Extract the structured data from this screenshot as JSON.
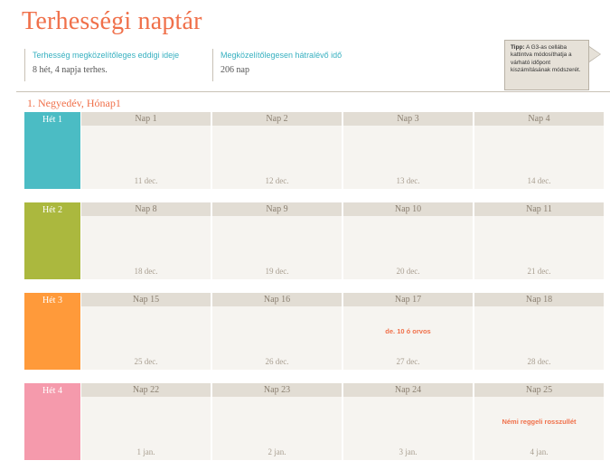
{
  "title": "Terhességi naptár",
  "info": {
    "elapsed_label": "Terhesség megközelítőleges eddigi ideje",
    "elapsed_value": "8 hét, 4 napja terhes.",
    "remaining_label": "Megközelítőlegesen hátralévő idő",
    "remaining_value": "206 nap"
  },
  "tip": {
    "bold": "Tipp:",
    "text": "A G3-as cellába kattintva módosíthatja a várható időpont kiszámításának módszerét."
  },
  "quarter_label": "1. Negyedév, Hónap1",
  "colors": {
    "accent": "#f0704a",
    "teal": "#4bbcc4",
    "green": "#abb83e",
    "orange": "#ff9a3a",
    "pink": "#f59aac"
  },
  "weeks": [
    {
      "label": "Hét 1",
      "color": "#4bbcc4",
      "days": [
        {
          "name": "Nap 1",
          "date": "11 dec.",
          "note": ""
        },
        {
          "name": "Nap 2",
          "date": "12 dec.",
          "note": ""
        },
        {
          "name": "Nap 3",
          "date": "13 dec.",
          "note": ""
        },
        {
          "name": "Nap 4",
          "date": "14 dec.",
          "note": ""
        }
      ]
    },
    {
      "label": "Hét 2",
      "color": "#abb83e",
      "days": [
        {
          "name": "Nap 8",
          "date": "18 dec.",
          "note": ""
        },
        {
          "name": "Nap 9",
          "date": "19 dec.",
          "note": ""
        },
        {
          "name": "Nap 10",
          "date": "20 dec.",
          "note": ""
        },
        {
          "name": "Nap 11",
          "date": "21 dec.",
          "note": ""
        }
      ]
    },
    {
      "label": "Hét 3",
      "color": "#ff9a3a",
      "days": [
        {
          "name": "Nap 15",
          "date": "25 dec.",
          "note": ""
        },
        {
          "name": "Nap 16",
          "date": "26 dec.",
          "note": ""
        },
        {
          "name": "Nap 17",
          "date": "27 dec.",
          "note": "de. 10 ó orvos"
        },
        {
          "name": "Nap 18",
          "date": "28 dec.",
          "note": ""
        }
      ]
    },
    {
      "label": "Hét 4",
      "color": "#f59aac",
      "days": [
        {
          "name": "Nap 22",
          "date": "1 jan.",
          "note": ""
        },
        {
          "name": "Nap 23",
          "date": "2 jan.",
          "note": ""
        },
        {
          "name": "Nap 24",
          "date": "3 jan.",
          "note": ""
        },
        {
          "name": "Nap 25",
          "date": "4 jan.",
          "note": "Némi reggeli rosszullét"
        }
      ]
    }
  ]
}
